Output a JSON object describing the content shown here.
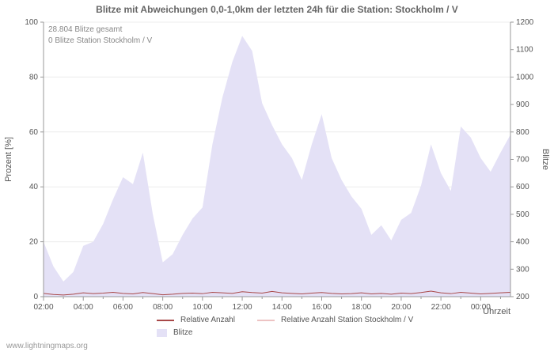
{
  "page": {
    "title": "Blitze mit Abweichungen 0,0-1,0km der letzten 24h für die Station: Stockholm / V",
    "watermark": "www.lightningmaps.org"
  },
  "annotations": {
    "total_label": "28.804 Blitze gesamt",
    "station_label": "0 Blitze Station Stockholm / V"
  },
  "legend": {
    "items": [
      {
        "label": "Relative Anzahl",
        "color": "#a84848",
        "type": "line"
      },
      {
        "label": "Relative Anzahl Station Stockholm / V",
        "color": "#edc3c3",
        "type": "line"
      },
      {
        "label": "Blitze",
        "color": "#e4e1f6",
        "type": "area"
      }
    ]
  },
  "chart_data": {
    "type": "area",
    "title": "Blitze mit Abweichungen 0,0-1,0km der letzten 24h für die Station: Stockholm / V",
    "xlabel": "Uhrzeit",
    "ylabel_left": "Prozent  [%]",
    "ylabel_right": "Blitze",
    "ylim_left": [
      0,
      100
    ],
    "yticks_left": [
      0,
      20,
      40,
      60,
      80,
      100
    ],
    "ylim_right": [
      200,
      1200
    ],
    "yticks_right": [
      200,
      300,
      400,
      500,
      600,
      700,
      800,
      900,
      1000,
      1100,
      1200
    ],
    "grid": "horizontal-light",
    "legend_position": "bottom",
    "x": [
      "02:00",
      "02:30",
      "03:00",
      "03:30",
      "04:00",
      "04:30",
      "05:00",
      "05:30",
      "06:00",
      "06:30",
      "07:00",
      "07:30",
      "08:00",
      "08:30",
      "09:00",
      "09:30",
      "10:00",
      "10:30",
      "11:00",
      "11:30",
      "12:00",
      "12:30",
      "13:00",
      "13:30",
      "14:00",
      "14:30",
      "15:00",
      "15:30",
      "16:00",
      "16:30",
      "17:00",
      "17:30",
      "18:00",
      "18:30",
      "19:00",
      "19:30",
      "20:00",
      "20:30",
      "21:00",
      "21:30",
      "22:00",
      "22:30",
      "23:00",
      "23:30",
      "00:00",
      "00:30",
      "01:00",
      "01:30"
    ],
    "series": [
      {
        "name": "Blitze",
        "axis": "right",
        "type": "area",
        "color": "#e4e1f6",
        "values": [
          400,
          310,
          255,
          290,
          385,
          400,
          465,
          555,
          635,
          610,
          725,
          500,
          325,
          355,
          425,
          485,
          525,
          755,
          925,
          1055,
          1150,
          1095,
          905,
          825,
          755,
          705,
          625,
          755,
          865,
          705,
          625,
          565,
          520,
          425,
          460,
          405,
          480,
          505,
          605,
          755,
          650,
          585,
          820,
          780,
          705,
          655,
          725,
          790
        ]
      },
      {
        "name": "Relative Anzahl",
        "axis": "left",
        "type": "line",
        "color": "#a84848",
        "values": [
          1.2,
          0.8,
          0.6,
          0.9,
          1.4,
          1.1,
          1.3,
          1.6,
          1.2,
          1.0,
          1.5,
          1.1,
          0.7,
          0.9,
          1.2,
          1.3,
          1.1,
          1.6,
          1.4,
          1.2,
          1.8,
          1.5,
          1.3,
          1.9,
          1.4,
          1.2,
          1.0,
          1.3,
          1.5,
          1.2,
          1.0,
          1.1,
          1.4,
          1.0,
          1.2,
          0.9,
          1.3,
          1.1,
          1.5,
          2.0,
          1.4,
          1.1,
          1.6,
          1.3,
          1.0,
          1.2,
          1.4,
          1.6
        ]
      },
      {
        "name": "Relative Anzahl Station Stockholm / V",
        "axis": "left",
        "type": "line",
        "color": "#edc3c3",
        "values": [
          0,
          0,
          0,
          0,
          0,
          0,
          0,
          0,
          0,
          0,
          0,
          0,
          0,
          0,
          0,
          0,
          0,
          0,
          0,
          0,
          0,
          0,
          0,
          0,
          0,
          0,
          0,
          0,
          0,
          0,
          0,
          0,
          0,
          0,
          0,
          0,
          0,
          0,
          0,
          0,
          0,
          0,
          0,
          0,
          0,
          0,
          0,
          0
        ]
      }
    ]
  }
}
